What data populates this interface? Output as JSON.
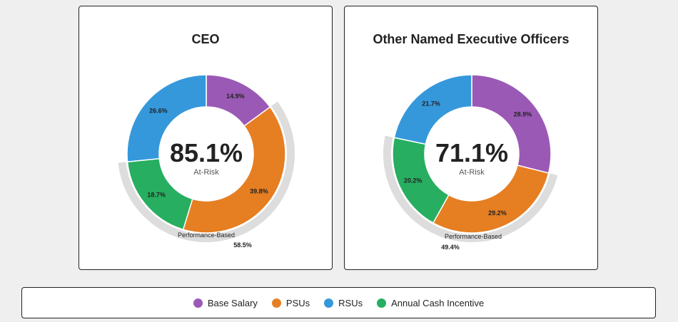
{
  "chart_data": [
    {
      "type": "pie",
      "title": "CEO",
      "center_value": "85.1%",
      "center_label": "At-Risk",
      "segments": [
        {
          "name": "Base Salary",
          "value": 14.9,
          "label": "14.9%",
          "color": "#9b59b6"
        },
        {
          "name": "PSUs",
          "value": 39.8,
          "label": "39.8%",
          "color": "#e67e22"
        },
        {
          "name": "Annual Cash Incentive",
          "value": 18.7,
          "label": "18.7%",
          "color": "#27ae60"
        },
        {
          "name": "RSUs",
          "value": 26.6,
          "label": "26.6%",
          "color": "#3498db"
        }
      ],
      "performance_based": {
        "label": "Performance-Based",
        "value": 58.5,
        "value_label": "58.5%"
      }
    },
    {
      "type": "pie",
      "title": "Other Named Executive Officers",
      "center_value": "71.1%",
      "center_label": "At-Risk",
      "segments": [
        {
          "name": "Base Salary",
          "value": 28.9,
          "label": "28.9%",
          "color": "#9b59b6"
        },
        {
          "name": "PSUs",
          "value": 29.2,
          "label": "29.2%",
          "color": "#e67e22"
        },
        {
          "name": "Annual Cash Incentive",
          "value": 20.2,
          "label": "20.2%",
          "color": "#27ae60"
        },
        {
          "name": "RSUs",
          "value": 21.7,
          "label": "21.7%",
          "color": "#3498db"
        }
      ],
      "performance_based": {
        "label": "Performance-Based",
        "value": 49.4,
        "value_label": "49.4%"
      }
    }
  ],
  "legend": [
    {
      "label": "Base Salary",
      "color": "#9b59b6"
    },
    {
      "label": "PSUs",
      "color": "#e67e22"
    },
    {
      "label": "RSUs",
      "color": "#3498db"
    },
    {
      "label": "Annual Cash Incentive",
      "color": "#27ae60"
    }
  ],
  "colors": {
    "performance_arc": "#dddddd"
  }
}
